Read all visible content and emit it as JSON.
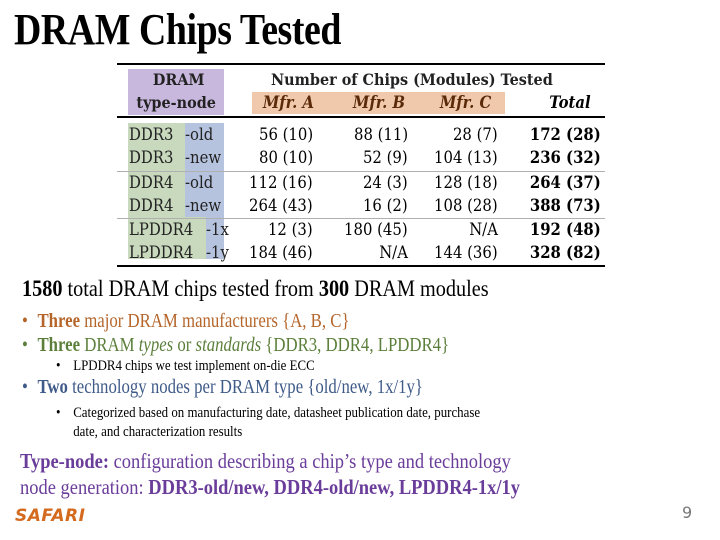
{
  "slide": {
    "title": "DRAM Chips Tested",
    "page_number": "9",
    "logo": "SAFARI"
  },
  "table": {
    "header": {
      "type_col_line1": "DRAM",
      "type_col_line2": "type-node",
      "group_label": "Number of Chips (Modules) Tested",
      "mfr_a": "Mfr. A",
      "mfr_b": "Mfr. B",
      "mfr_c": "Mfr. C",
      "total": "Total"
    },
    "rows": [
      {
        "type": "DDR3",
        "node": "-old",
        "a": "56 (10)",
        "b": "88 (11)",
        "c": "28 (7)",
        "total": "172 (28)"
      },
      {
        "type": "DDR3",
        "node": "-new",
        "a": "80 (10)",
        "b": "52 (9)",
        "c": "104 (13)",
        "total": "236 (32)"
      },
      {
        "type": "DDR4",
        "node": "-old",
        "a": "112 (16)",
        "b": "24 (3)",
        "c": "128 (18)",
        "total": "264 (37)"
      },
      {
        "type": "DDR4",
        "node": "-new",
        "a": "264 (43)",
        "b": "16 (2)",
        "c": "108 (28)",
        "total": "388 (73)"
      },
      {
        "type": "LPDDR4",
        "node": "-1x",
        "a": "12 (3)",
        "b": "180 (45)",
        "c": "N/A",
        "total": "192 (48)"
      },
      {
        "type": "LPDDR4",
        "node": "-1y",
        "a": "184 (46)",
        "b": "N/A",
        "c": "144 (36)",
        "total": "328 (82)"
      }
    ],
    "colors": {
      "type_header_bg": "#c9b8de",
      "mfr_header_bg": "#f0c9ac",
      "type_bg": "#c8d9bd",
      "node_bg": "#b6c3de"
    }
  },
  "summary": {
    "count1": "1580",
    "text1": " total DRAM chips tested from ",
    "count2": "300",
    "text2": " DRAM modules"
  },
  "bullets": [
    {
      "bold": "Three",
      "rest": " major DRAM manufacturers {A, B, C}",
      "color": "#b5652a"
    },
    {
      "bold": "Three",
      "rest_a": " DRAM ",
      "italic_a": "types",
      "rest_b": " or ",
      "italic_b": "standards",
      "rest_c": " {DDR3, DDR4, LPDDR4}",
      "color": "#5b7f3a",
      "sub": "LPDDR4 chips we test implement on-die ECC"
    },
    {
      "bold": "Two",
      "rest": " technology nodes per DRAM type {old/new, 1x/1y}",
      "color": "#3e5a88",
      "sub_line1": "Categorized based on manufacturing date, datasheet publication date, purchase",
      "sub_line2": "date, and characterization results"
    }
  ],
  "definition": {
    "term": "Type-node:",
    "text1": " configuration describing a chip’s type and technology",
    "text2": "node generation: ",
    "examples": "DDR3-old/new, DDR4-old/new, LPDDR4-1x/1y"
  }
}
